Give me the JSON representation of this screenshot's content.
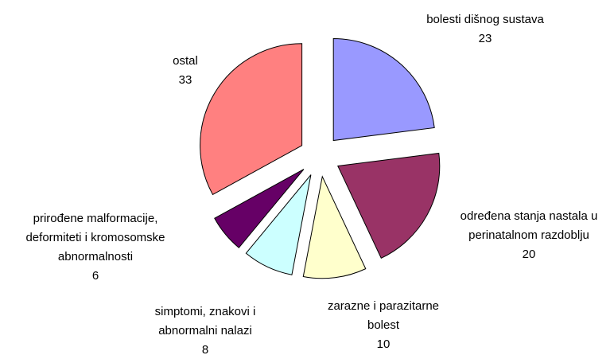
{
  "chart_data": {
    "type": "pie",
    "labels": [
      [
        "bolesti dišnog sustava"
      ],
      [
        "određena stanja nastala u",
        "perinatalnom razdoblju"
      ],
      [
        "zarazne i parazitarne",
        "bolest"
      ],
      [
        "simptomi, znakovi i",
        "abnormalni nalazi"
      ],
      [
        "prirođene malformacije,",
        "deformiteti i kromosomske",
        "abnormalnosti"
      ],
      [
        "ostal"
      ]
    ],
    "values": [
      23,
      20,
      10,
      8,
      6,
      33
    ],
    "colors": [
      "#9999ff",
      "#993366",
      "#ffffcc",
      "#ccffff",
      "#660066",
      "#ff8080"
    ]
  }
}
